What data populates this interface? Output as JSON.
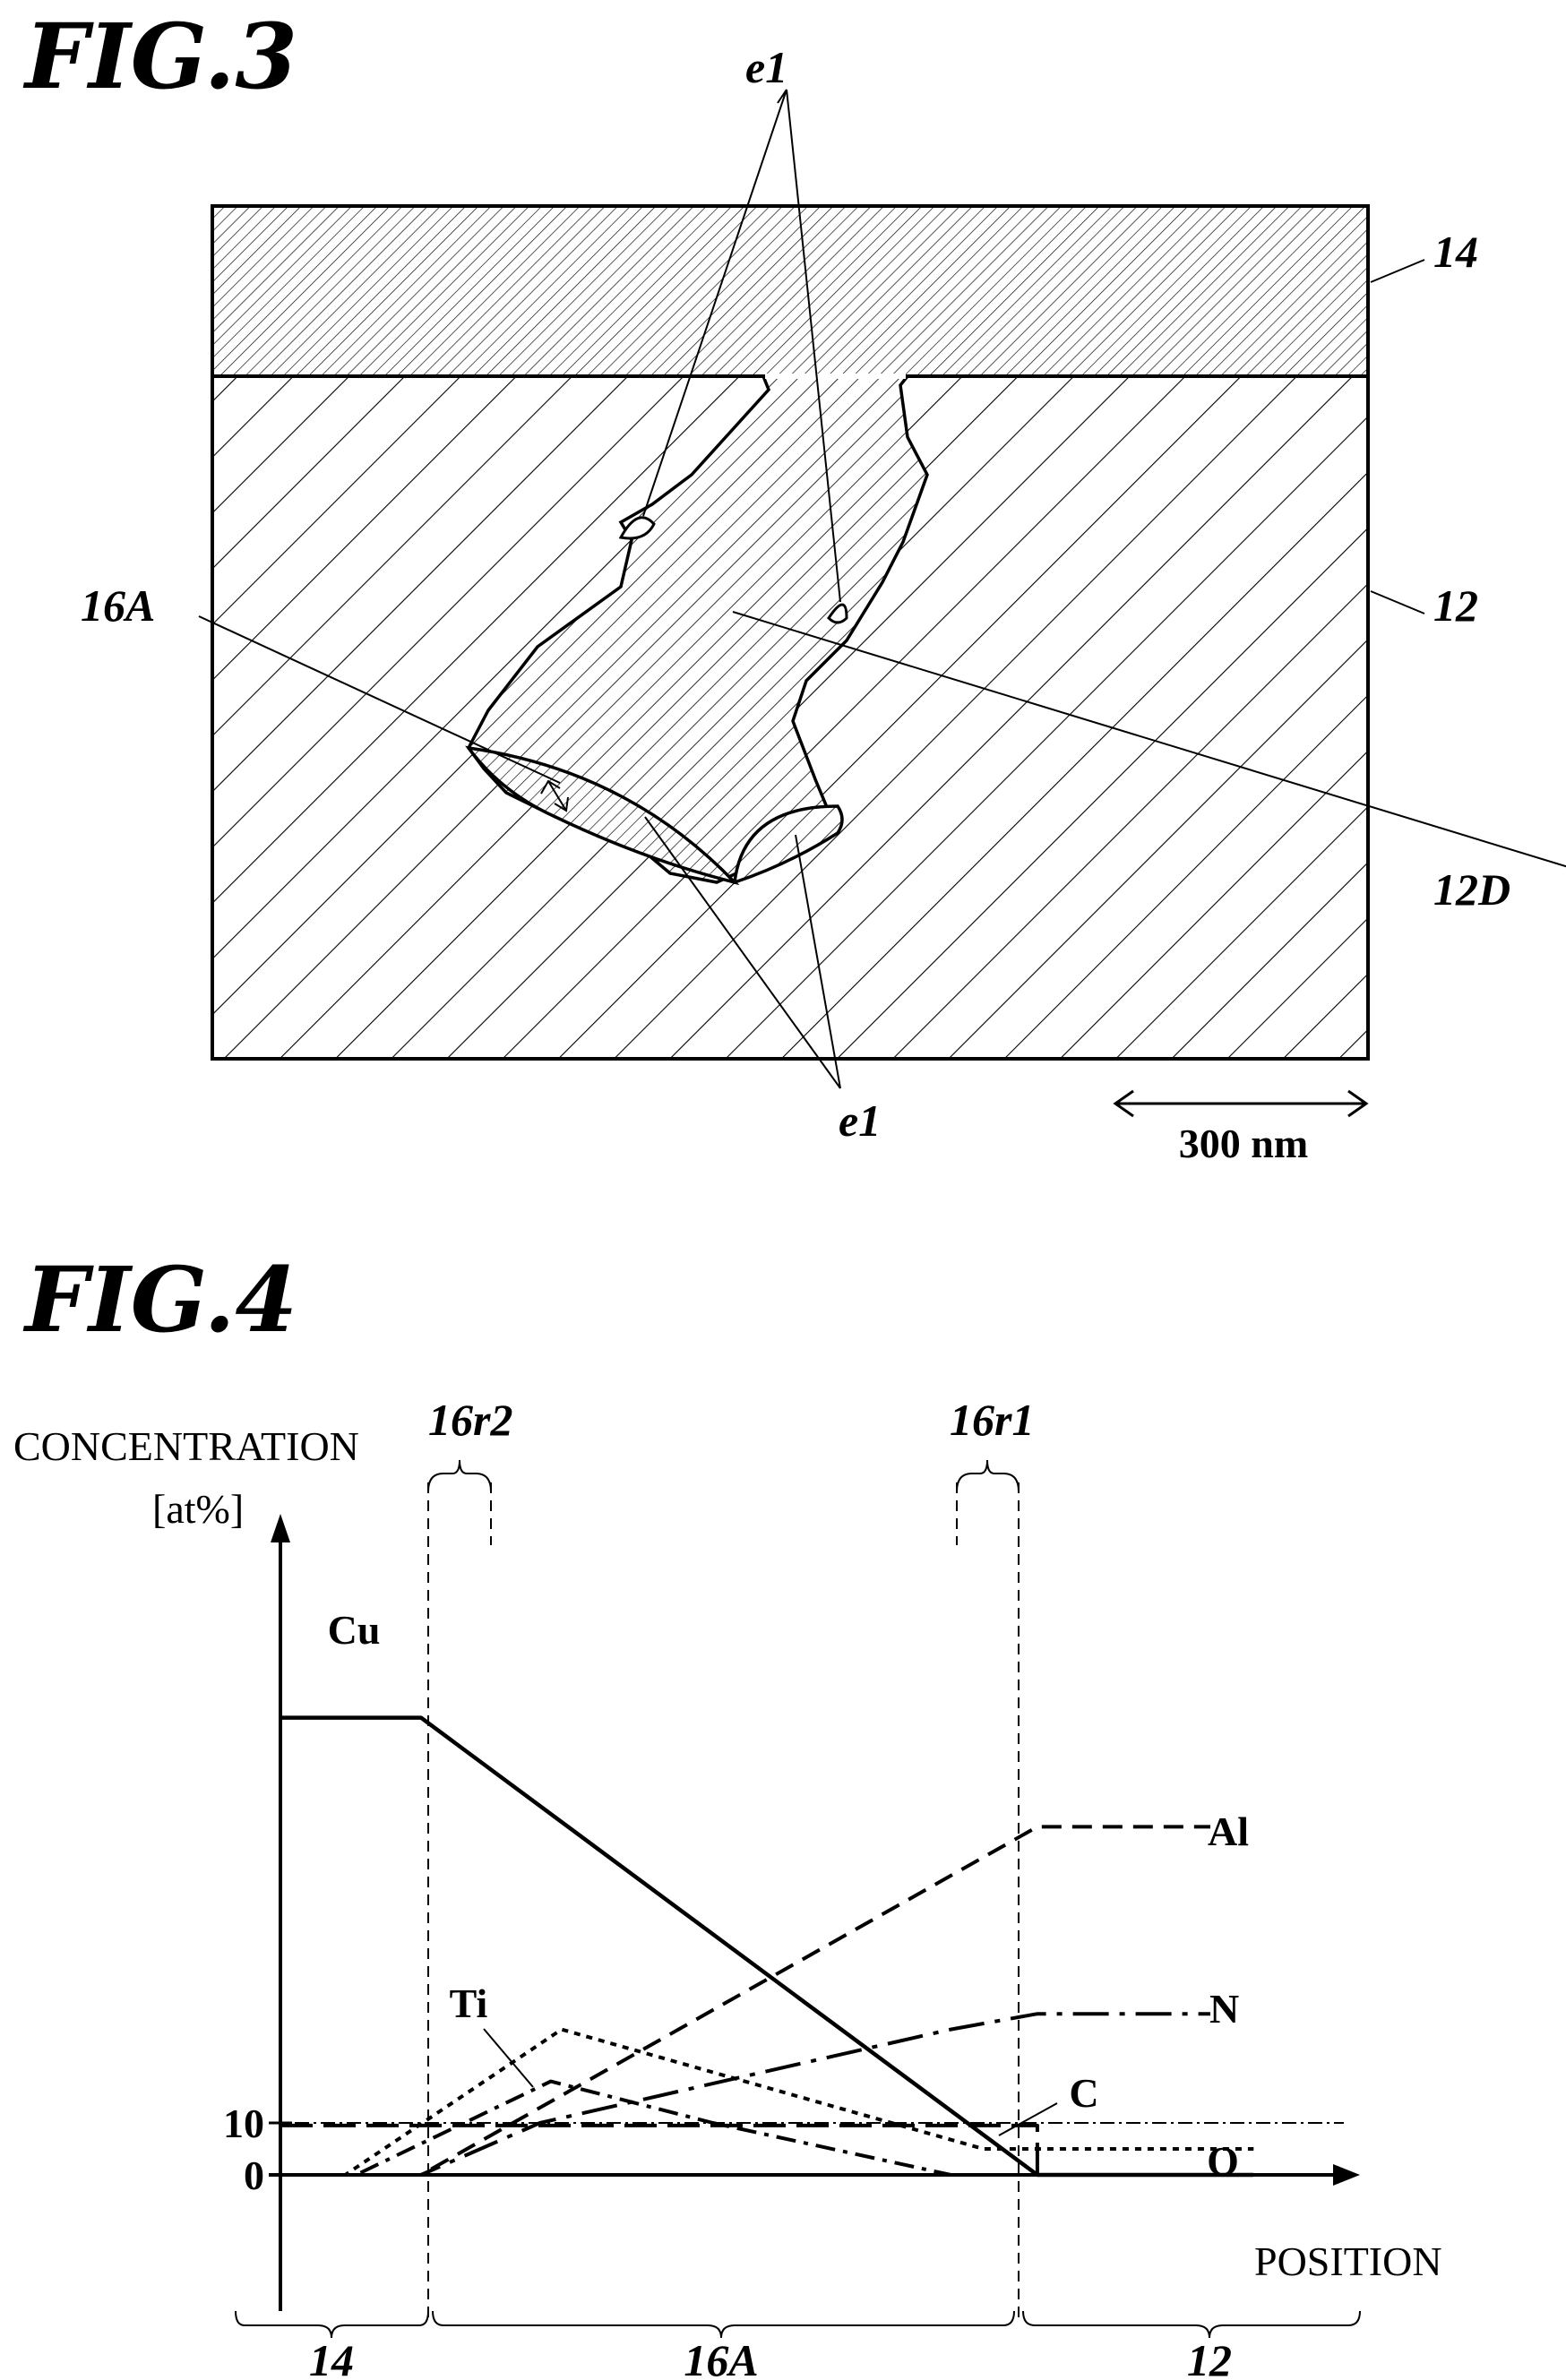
{
  "fig3": {
    "title": "FIG.3",
    "labels": {
      "ref_14": "14",
      "ref_12": "12",
      "ref_12D": "12D",
      "ref_16A": "16A",
      "ref_e1_top": "e1",
      "ref_e1_bottom": "e1"
    },
    "scale_bar": "300 nm"
  },
  "fig4": {
    "title": "FIG.4",
    "y_label_line1": "CONCENTRATION",
    "y_label_line2": "[at%]",
    "x_label": "POSITION",
    "y_tick_10": "10",
    "y_tick_0": "0",
    "region_16r2": "16r2",
    "region_16r1": "16r1",
    "region_14": "14",
    "region_16A": "16A",
    "region_12": "12"
  },
  "chart_data": {
    "type": "line",
    "title": "",
    "xlabel": "POSITION",
    "ylabel": "CONCENTRATION [at%]",
    "yticks": [
      "0",
      "10"
    ],
    "regions": [
      "14",
      "16A",
      "12"
    ],
    "series": [
      {
        "name": "Cu",
        "style": "solid",
        "points": [
          [
            0,
            88
          ],
          [
            0.13,
            88
          ],
          [
            0.7,
            0
          ],
          [
            0.9,
            0
          ]
        ]
      },
      {
        "name": "Al",
        "style": "dashed",
        "points": [
          [
            0,
            0
          ],
          [
            0.13,
            0
          ],
          [
            0.7,
            67
          ],
          [
            0.86,
            67
          ]
        ]
      },
      {
        "name": "N",
        "style": "long-dash-dot",
        "points": [
          [
            0,
            0
          ],
          [
            0.13,
            0
          ],
          [
            0.24,
            10
          ],
          [
            0.62,
            28
          ],
          [
            0.7,
            31
          ],
          [
            0.86,
            31
          ]
        ]
      },
      {
        "name": "Ti",
        "style": "dash-dot",
        "points": [
          [
            0,
            0
          ],
          [
            0.07,
            0
          ],
          [
            0.25,
            18
          ],
          [
            0.4,
            10
          ],
          [
            0.62,
            0
          ],
          [
            0.7,
            0
          ],
          [
            0.9,
            0
          ]
        ]
      },
      {
        "name": "C",
        "style": "long-dash",
        "points": [
          [
            0,
            9.5
          ],
          [
            0.7,
            9.5
          ],
          [
            0.7,
            0
          ]
        ]
      },
      {
        "name": "O",
        "style": "dotted",
        "points": [
          [
            0,
            0
          ],
          [
            0.06,
            0
          ],
          [
            0.26,
            28
          ],
          [
            0.65,
            5
          ],
          [
            0.7,
            5
          ],
          [
            0.9,
            5
          ]
        ]
      }
    ],
    "grid": false,
    "legend": "none"
  },
  "colors": {
    "ink": "#000000",
    "paper": "#ffffff"
  }
}
